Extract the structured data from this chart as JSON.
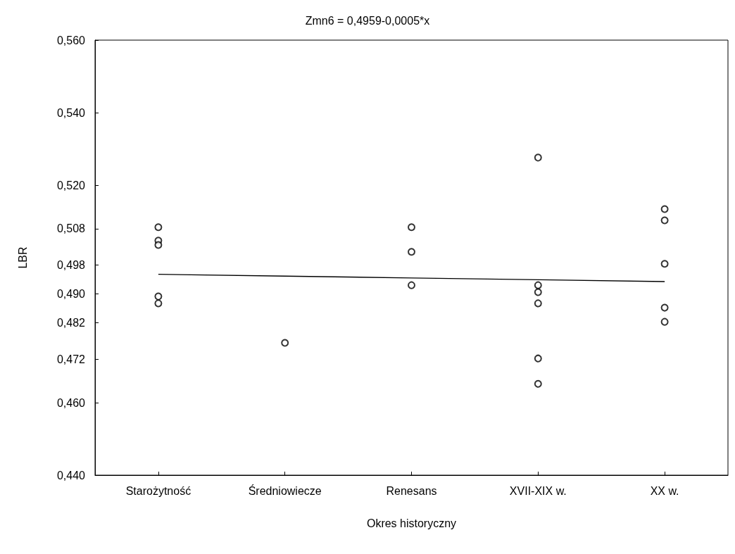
{
  "chart_data": {
    "type": "scatter",
    "title": "Zmn6 = 0,4959-0,0005*x",
    "xlabel": "Okres historyczny",
    "ylabel": "LBR",
    "grid": false,
    "categories": [
      "Starożytność",
      "Średniowiecze",
      "Renesans",
      "XVII-XIX w.",
      "XX w."
    ],
    "ylim": [
      0.44,
      0.56
    ],
    "yticks": [
      {
        "value": 0.44,
        "label": "0,440"
      },
      {
        "value": 0.46,
        "label": "0,460"
      },
      {
        "value": 0.472,
        "label": "0,472"
      },
      {
        "value": 0.482,
        "label": "0,482"
      },
      {
        "value": 0.49,
        "label": "0,490"
      },
      {
        "value": 0.498,
        "label": "0,498"
      },
      {
        "value": 0.508,
        "label": "0,508"
      },
      {
        "value": 0.52,
        "label": "0,520"
      },
      {
        "value": 0.54,
        "label": "0,540"
      },
      {
        "value": 0.56,
        "label": "0,560"
      }
    ],
    "series": [
      {
        "color": "#000000",
        "marker": "circle",
        "x": [
          "Starożytność",
          "Starożytność",
          "Starożytność",
          "Starożytność",
          "Starożytność",
          "Średniowiecze",
          "Renesans",
          "Renesans",
          "Renesans",
          "XVII-XIX w.",
          "XVII-XIX w.",
          "XVII-XIX w.",
          "XVII-XIX w.",
          "XVII-XIX w.",
          "XVII-XIX w.",
          "XX w.",
          "XX w.",
          "XX w.",
          "XX w.",
          "XX w."
        ],
        "values": [
          0.5084,
          0.5047,
          0.5035,
          0.4893,
          0.4874,
          0.4765,
          0.5084,
          0.5016,
          0.4924,
          0.5276,
          0.4924,
          0.4905,
          0.4874,
          0.4722,
          0.4652,
          0.5134,
          0.5103,
          0.4983,
          0.4862,
          0.4823
        ]
      },
      {
        "type": "line",
        "color": "#000000",
        "marker": "none",
        "values": [
          0.4954,
          0.4949,
          0.4944,
          0.4939,
          0.4934
        ]
      }
    ]
  }
}
